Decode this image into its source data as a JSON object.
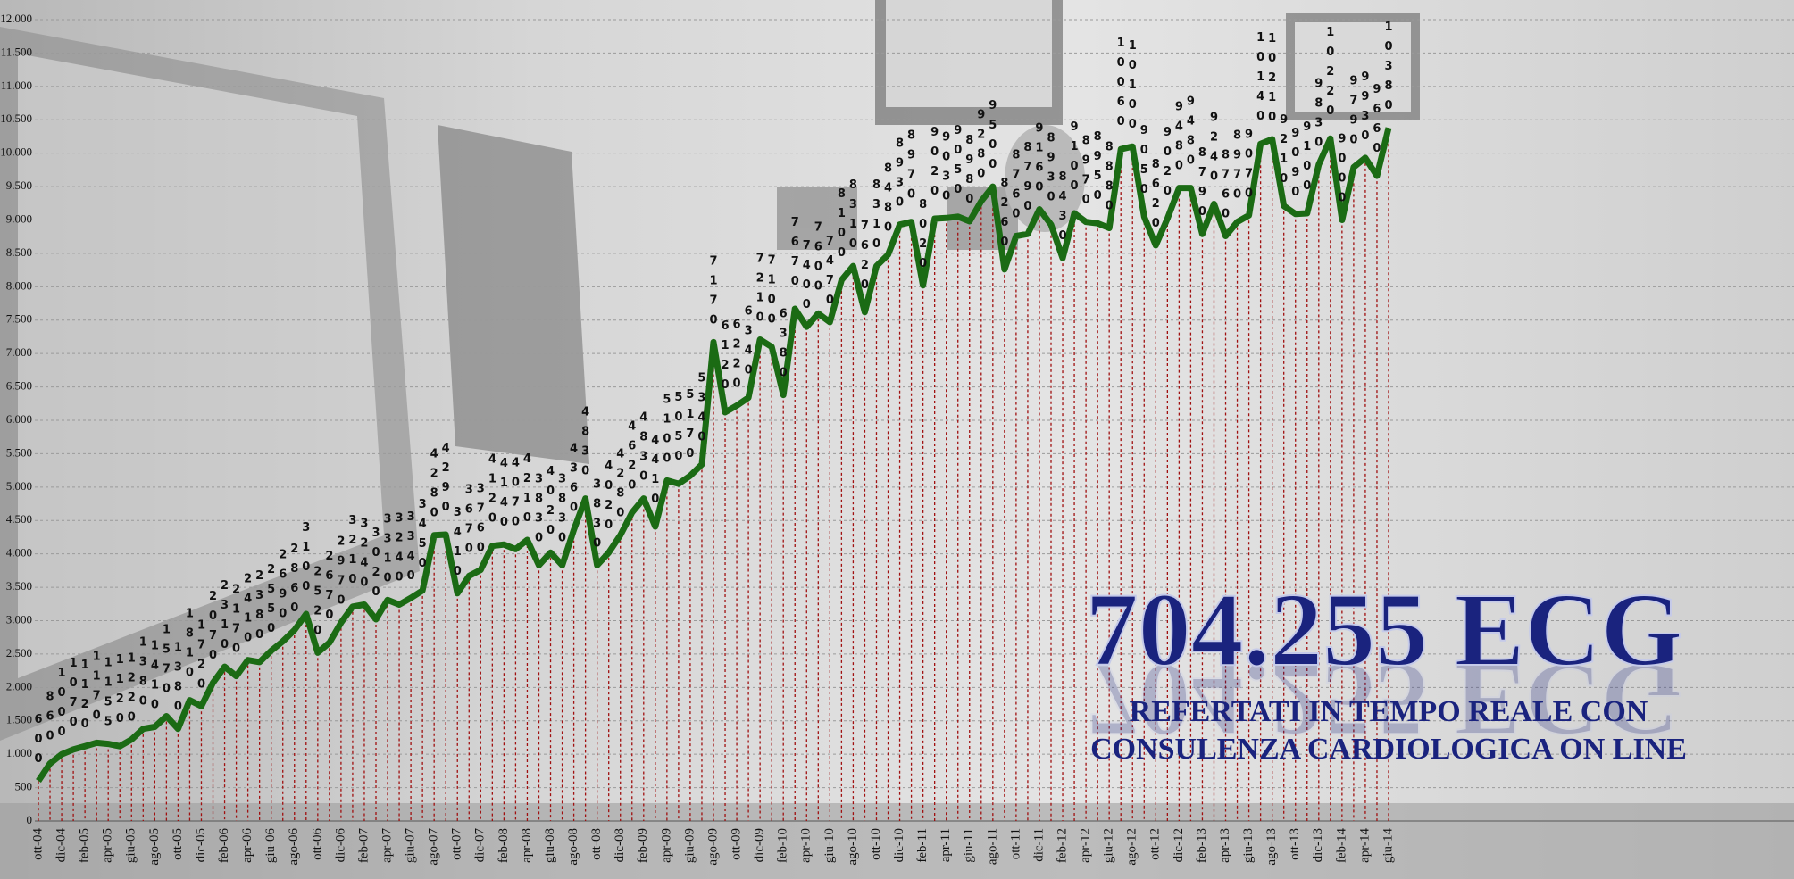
{
  "chart_data": {
    "type": "line",
    "annotations": [
      "704.255 ECG",
      "REFERTATI IN TEMPO REALE CON",
      "CONSULENZA CARDIOLOGICA ON LINE"
    ],
    "categories": [
      "ott-04",
      null,
      "dic-04",
      null,
      "feb-05",
      null,
      "apr-05",
      null,
      "giu-05",
      null,
      "ago-05",
      null,
      "ott-05",
      null,
      "dic-05",
      null,
      "feb-06",
      null,
      "apr-06",
      null,
      "giu-06",
      null,
      "ago-06",
      null,
      "ott-06",
      null,
      "dic-06",
      null,
      "feb-07",
      null,
      "apr-07",
      null,
      "giu-07",
      null,
      "ago-07",
      null,
      "ott-07",
      null,
      "dic-07",
      null,
      "feb-08",
      null,
      "apr-08",
      null,
      "giu-08",
      null,
      "ago-08",
      null,
      "ott-08",
      null,
      "dic-08",
      null,
      "feb-09",
      null,
      "apr-09",
      null,
      "giu-09",
      null,
      "ago-09",
      null,
      "ott-09",
      null,
      "dic-09",
      null,
      "feb-10",
      null,
      "apr-10",
      null,
      "giu-10",
      null,
      "ago-10",
      null,
      "ott-10",
      null,
      "dic-10",
      null,
      "feb-11",
      null,
      "apr-11",
      null,
      "giu-11",
      null,
      "ago-11",
      null,
      "ott-11",
      null,
      "dic-11",
      null,
      "feb-12",
      null,
      "apr-12",
      null,
      "giu-12",
      null,
      "ago-12",
      null,
      "ott-12",
      null,
      "dic-12",
      null,
      "feb-13",
      null,
      "apr-13",
      null,
      "giu-13",
      null,
      "ago-13",
      null,
      "ott-13",
      null,
      "dic-13",
      null,
      "feb-14",
      null,
      "apr-14",
      null,
      "giu-14"
    ],
    "series": [
      {
        "color": "#1b6b14",
        "values": [
          600,
          860,
          1000,
          1070,
          1120,
          1170,
          1155,
          1120,
          1220,
          1380,
          1410,
          1570,
          1380,
          1810,
          1720,
          2070,
          2310,
          2170,
          2410,
          2380,
          2550,
          2690,
          2860,
          3100,
          2520,
          2670,
          2970,
          3210,
          3240,
          3020,
          3310,
          3240,
          3340,
          3450,
          4280,
          4290,
          3410,
          3670,
          3760,
          4120,
          4140,
          4070,
          4210,
          3830,
          4020,
          3830,
          4360,
          4830,
          3830,
          4020,
          4280,
          4620,
          4830,
          4410,
          5100,
          5050,
          5170,
          5340,
          7170,
          6120,
          6220,
          6340,
          7210,
          7100,
          6380,
          7670,
          7400,
          7600,
          7470,
          8100,
          8310,
          7620,
          8310,
          8480,
          8930,
          8970,
          8020,
          9020,
          9030,
          9050,
          8980,
          9280,
          9500,
          8260,
          8760,
          8790,
          9160,
          8930,
          8430,
          9100,
          8970,
          8950,
          8880,
          10060,
          10100,
          9050,
          8620,
          9020,
          9480,
          9480,
          8790,
          9240,
          8760,
          8970,
          9070,
          10140,
          10210,
          9210,
          9090,
          9100,
          9830,
          10220,
          9000,
          9790,
          9930,
          9660,
          10380
        ]
      }
    ],
    "ylim": [
      0,
      12000
    ],
    "yticks": [
      0,
      500,
      {
        "value": 1000,
        "label": "1.000"
      },
      {
        "value": 1500,
        "label": "1.500"
      },
      {
        "value": 2000,
        "label": "2.000"
      },
      {
        "value": 2500,
        "label": "2.500"
      },
      {
        "value": 3000,
        "label": "3.000"
      },
      {
        "value": 3500,
        "label": "3.500"
      },
      {
        "value": 4000,
        "label": "4.000"
      },
      {
        "value": 4500,
        "label": "4.500"
      },
      {
        "value": 5000,
        "label": "5.000"
      },
      {
        "value": 5500,
        "label": "5.500"
      },
      {
        "value": 6000,
        "label": "6.000"
      },
      {
        "value": 6500,
        "label": "6.500"
      },
      {
        "value": 7000,
        "label": "7.000"
      },
      {
        "value": 7500,
        "label": "7.500"
      },
      {
        "value": 8000,
        "label": "8.000"
      },
      {
        "value": 8500,
        "label": "8.500"
      },
      {
        "value": 9000,
        "label": "9.000"
      },
      {
        "value": 9500,
        "label": "9.500"
      },
      {
        "value": 10000,
        "label": "10.000"
      },
      {
        "value": 10500,
        "label": "10.500"
      },
      {
        "value": 11000,
        "label": "11.000"
      },
      {
        "value": 11500,
        "label": "11.500"
      },
      {
        "value": 12000,
        "label": "12.000"
      }
    ],
    "grid": true,
    "drop_line_color": "#a01010"
  }
}
